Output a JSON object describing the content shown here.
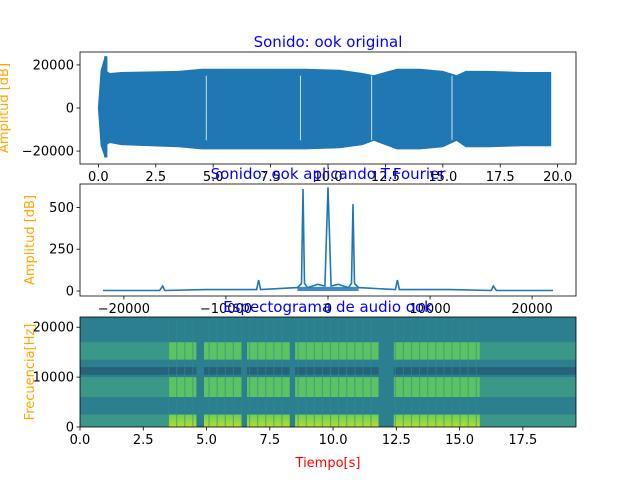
{
  "colors": {
    "signal": "#1f77b4",
    "title": "#0000ff",
    "ylabel": "#ffa500",
    "xlabel": "#ff0000"
  },
  "chart_data": [
    {
      "type": "line",
      "title": "Sonido: ook original",
      "xlabel": "",
      "ylabel": "Amplitud [dB]",
      "xlim": [
        -0.8,
        20.8
      ],
      "ylim": [
        -26000,
        26000
      ],
      "xticks": [
        0.0,
        2.5,
        5.0,
        7.5,
        10.0,
        12.5,
        15.0,
        17.5,
        20.0
      ],
      "xtick_labels": [
        "0.0",
        "2.5",
        "5.0",
        "7.5",
        "10.0",
        "12.5",
        "15.0",
        "17.5",
        "20.0"
      ],
      "yticks": [
        -20000,
        0,
        20000
      ],
      "ytick_labels": [
        "−20000",
        "0",
        "20000"
      ],
      "x": [
        0.0,
        0.12,
        0.3,
        0.35,
        0.5,
        1.0,
        3.5,
        4.5,
        6.0,
        7.5,
        9.0,
        10.5,
        11.5,
        12.0,
        13.0,
        14.0,
        15.0,
        15.6,
        16.0,
        17.0,
        18.5,
        19.7
      ],
      "envelope_upper": [
        0,
        17500,
        24000,
        17000,
        16000,
        16500,
        17000,
        18000,
        18000,
        18000,
        18000,
        17500,
        16000,
        15000,
        18000,
        18000,
        17000,
        15000,
        17000,
        17000,
        16500,
        16500
      ],
      "envelope_lower": [
        0,
        -17500,
        -23000,
        -17000,
        -16000,
        -17000,
        -18000,
        -19000,
        -19000,
        -19000,
        -19000,
        -18500,
        -17000,
        -15000,
        -19000,
        -19000,
        -18000,
        -15000,
        -18000,
        -18000,
        -17500,
        -17500
      ]
    },
    {
      "type": "line",
      "title": "Sonido: ook aplicando T.Fourier",
      "xlabel": "",
      "ylabel": "Amplitud [dB]",
      "xlim": [
        -24300,
        24300
      ],
      "ylim": [
        -30,
        640
      ],
      "xticks": [
        -20000,
        -10000,
        0,
        10000,
        20000
      ],
      "xtick_labels": [
        "−20000",
        "−10000",
        "0",
        "10000",
        "20000"
      ],
      "yticks": [
        0,
        250,
        500
      ],
      "ytick_labels": [
        "0",
        "250",
        "500"
      ],
      "x": [
        -22050,
        -16500,
        -16200,
        -16000,
        -12000,
        -7000,
        -6800,
        -6600,
        -3000,
        -2600,
        -2450,
        -2300,
        -2000,
        -1000,
        -300,
        0,
        300,
        1000,
        2000,
        2300,
        2450,
        2600,
        3000,
        6600,
        6800,
        7000,
        12000,
        16000,
        16200,
        16500,
        22050
      ],
      "y": [
        3,
        3,
        30,
        3,
        8,
        8,
        65,
        8,
        20,
        45,
        610,
        45,
        20,
        40,
        30,
        620,
        30,
        40,
        20,
        45,
        520,
        45,
        20,
        8,
        65,
        8,
        8,
        3,
        30,
        3,
        3
      ]
    },
    {
      "type": "heatmap",
      "title": "Espectograma de audio ook",
      "xlabel": "Tiempo[s]",
      "ylabel": "Frecuencia[Hz]",
      "xlim": [
        0,
        19.6
      ],
      "ylim": [
        0,
        22050
      ],
      "xticks": [
        0.0,
        2.5,
        5.0,
        7.5,
        10.0,
        12.5,
        15.0,
        17.5
      ],
      "xtick_labels": [
        "0.0",
        "2.5",
        "5.0",
        "7.5",
        "10.0",
        "12.5",
        "15.0",
        "17.5"
      ],
      "yticks": [
        0,
        10000,
        20000
      ],
      "ytick_labels": [
        "0",
        "10000",
        "20000"
      ],
      "active_interval": [
        3.5,
        15.8
      ],
      "bright_bands_hz": [
        [
          0,
          2500
        ],
        [
          6000,
          10000
        ],
        [
          13500,
          17000
        ]
      ],
      "dark_band_hz": [
        10500,
        12000
      ],
      "gaps_s": [
        [
          4.6,
          4.9
        ],
        [
          6.4,
          6.6
        ],
        [
          8.3,
          8.5
        ],
        [
          11.8,
          12.4
        ]
      ]
    }
  ]
}
